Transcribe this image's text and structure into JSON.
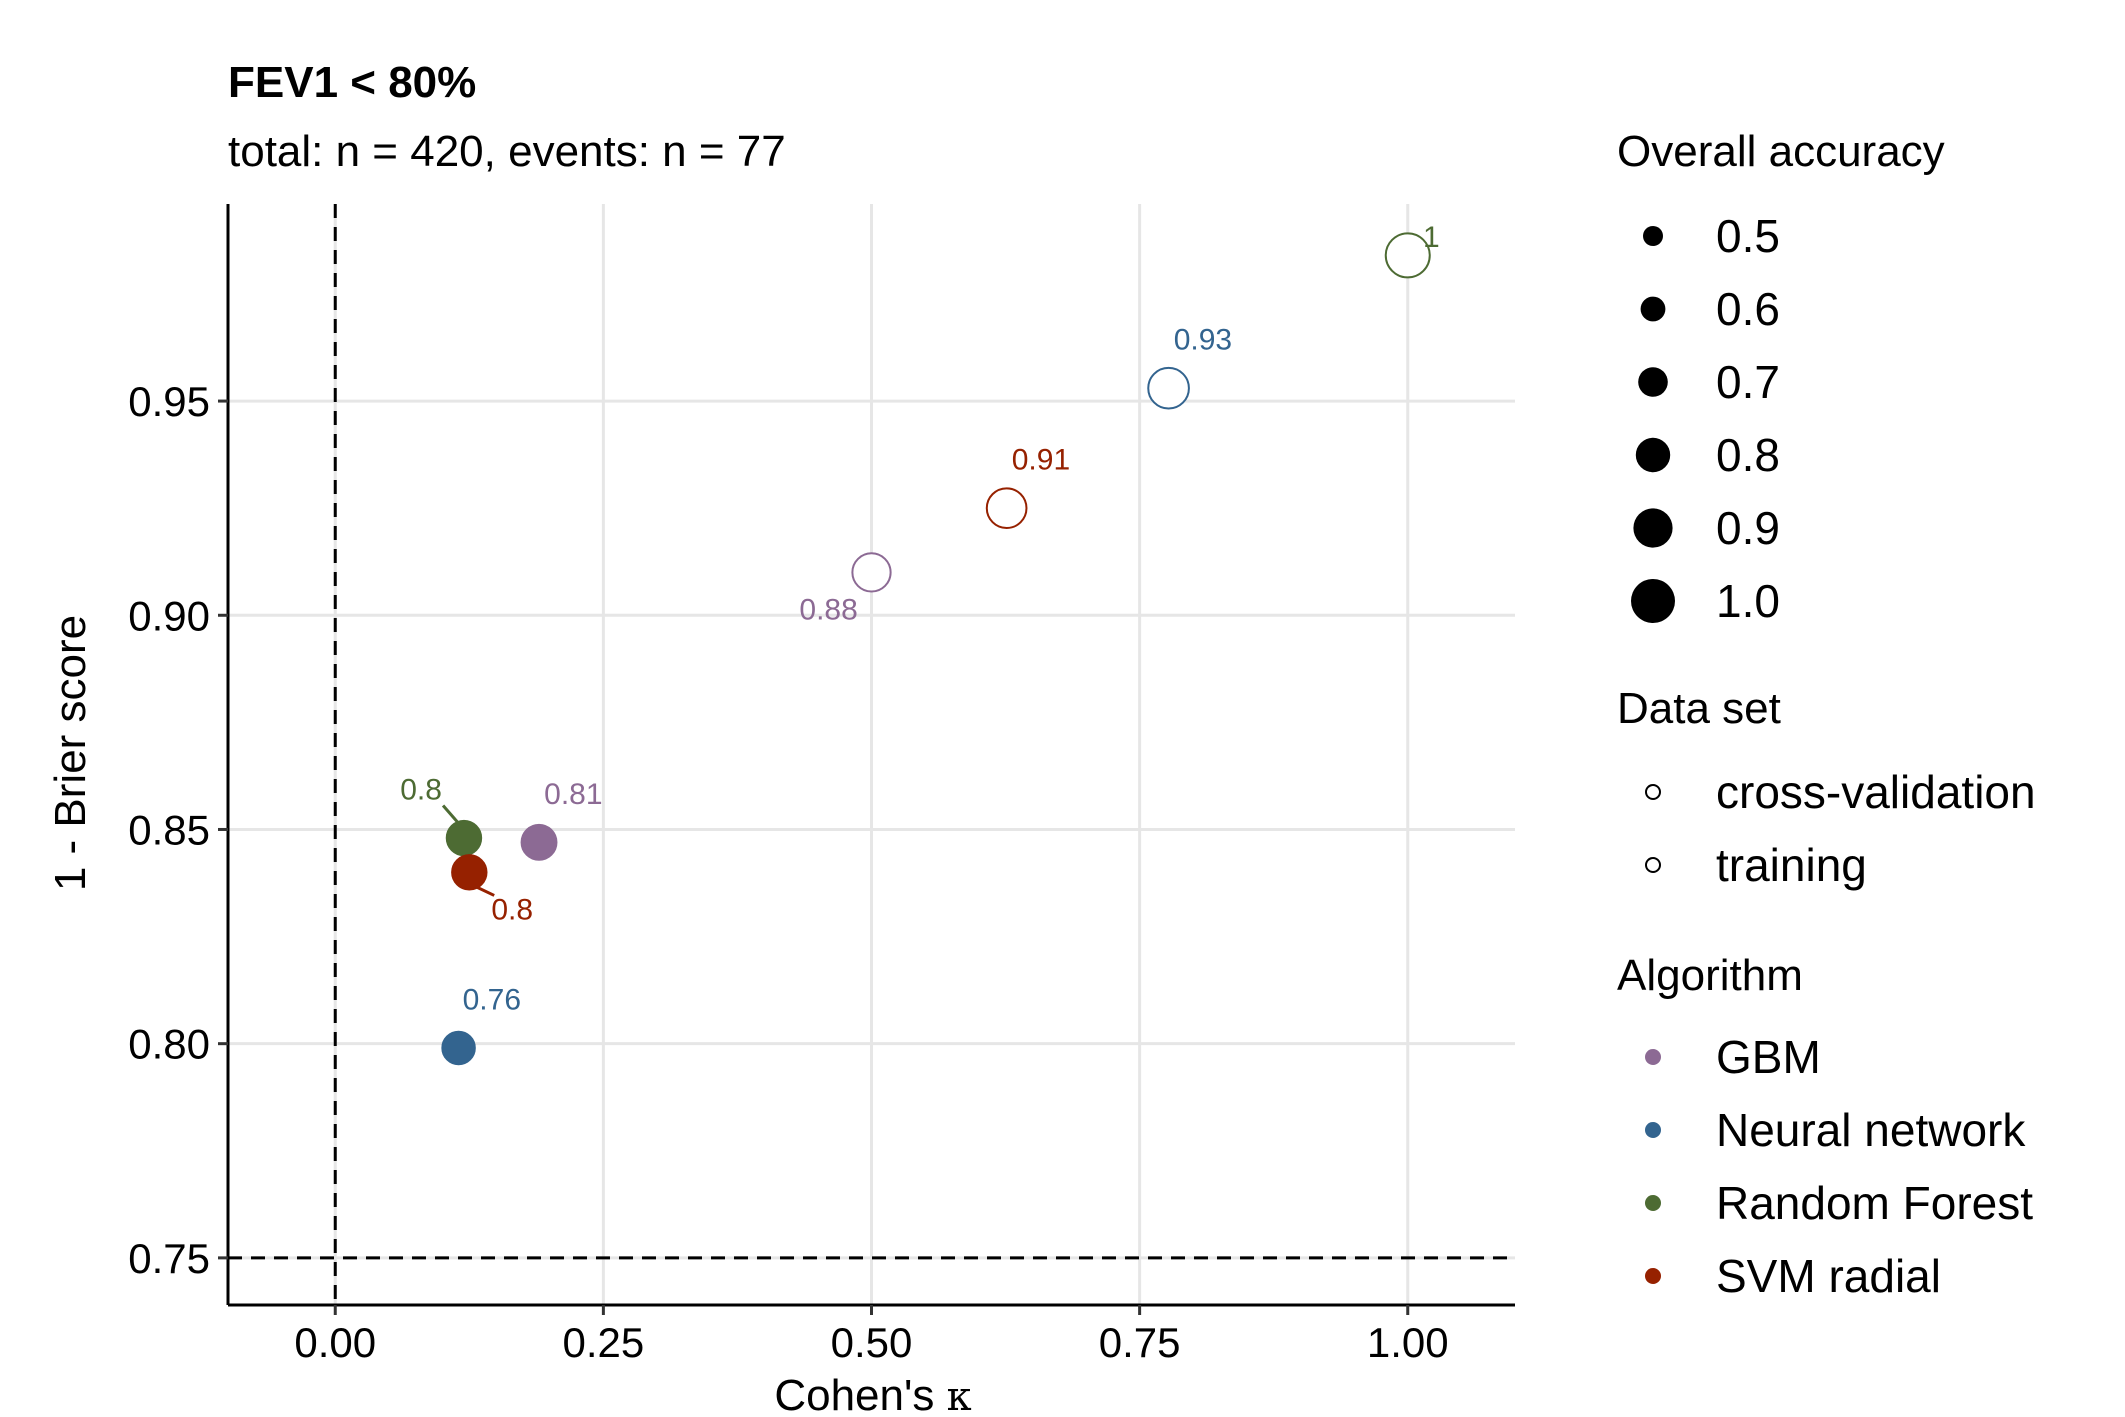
{
  "chart_data": {
    "type": "scatter",
    "title": "FEV1 < 80%",
    "subtitle": "total: n = 420, events: n = 77",
    "xlabel_prefix": "Cohen's ",
    "xlabel_symbol": "κ",
    "ylabel": "1 - Brier score",
    "xlim": [
      -0.1,
      1.1
    ],
    "ylim": [
      0.739,
      0.996
    ],
    "x_ticks": [
      0.0,
      0.25,
      0.5,
      0.75,
      1.0
    ],
    "x_tick_labels": [
      "0.00",
      "0.25",
      "0.50",
      "0.75",
      "1.00"
    ],
    "y_ticks": [
      0.75,
      0.8,
      0.85,
      0.9,
      0.95
    ],
    "y_tick_labels": [
      "0.75",
      "0.80",
      "0.85",
      "0.90",
      "0.95"
    ],
    "reference_lines": {
      "vertical_x": 0.0,
      "horizontal_y": 0.75,
      "style": "dashed"
    },
    "grid": true,
    "points": [
      {
        "algorithm": "GBM",
        "dataset": "cross-validation",
        "kappa": 0.19,
        "score": 0.847,
        "accuracy": 0.81,
        "label": "0.81",
        "label_dx": 0.032,
        "label_dy": 0.009
      },
      {
        "algorithm": "Neural network",
        "dataset": "cross-validation",
        "kappa": 0.115,
        "score": 0.799,
        "accuracy": 0.76,
        "label": "0.76",
        "label_dx": 0.031,
        "label_dy": 0.009
      },
      {
        "algorithm": "Random Forest",
        "dataset": "cross-validation",
        "kappa": 0.12,
        "score": 0.848,
        "accuracy": 0.8,
        "label": "0.8",
        "label_dx": -0.04,
        "label_dy": 0.009,
        "leader": true
      },
      {
        "algorithm": "SVM radial",
        "dataset": "cross-validation",
        "kappa": 0.125,
        "score": 0.84,
        "accuracy": 0.8,
        "label": "0.8",
        "label_dx": 0.04,
        "label_dy": -0.011,
        "leader": true
      },
      {
        "algorithm": "GBM",
        "dataset": "training",
        "kappa": 0.5,
        "score": 0.91,
        "accuracy": 0.88,
        "label": "0.88",
        "label_dx": -0.04,
        "label_dy": -0.011
      },
      {
        "algorithm": "Neural network",
        "dataset": "training",
        "kappa": 0.777,
        "score": 0.953,
        "accuracy": 0.93,
        "label": "0.93",
        "label_dx": 0.032,
        "label_dy": 0.009
      },
      {
        "algorithm": "Random Forest",
        "dataset": "training",
        "kappa": 1.0,
        "score": 0.984,
        "accuracy": 1.0,
        "label": "1",
        "label_dx": 0.022,
        "label_dy": 0.002
      },
      {
        "algorithm": "SVM radial",
        "dataset": "training",
        "kappa": 0.626,
        "score": 0.925,
        "accuracy": 0.91,
        "label": "0.91",
        "label_dx": 0.032,
        "label_dy": 0.009
      }
    ],
    "legend": {
      "placement": "right",
      "size": {
        "title": "Overall accuracy",
        "entries": [
          "0.5",
          "0.6",
          "0.7",
          "0.8",
          "0.9",
          "1.0"
        ],
        "values": [
          0.5,
          0.6,
          0.7,
          0.8,
          0.9,
          1.0
        ]
      },
      "dataset": {
        "title": "Data set",
        "entries": [
          "cross-validation",
          "training"
        ]
      },
      "algorithm": {
        "title": "Algorithm",
        "entries": [
          "GBM",
          "Neural network",
          "Random Forest",
          "SVM radial"
        ]
      }
    }
  },
  "colors": {
    "GBM": "#8c6a94",
    "Neural network": "#33648f",
    "Random Forest": "#4d6b33",
    "SVM radial": "#962100"
  }
}
